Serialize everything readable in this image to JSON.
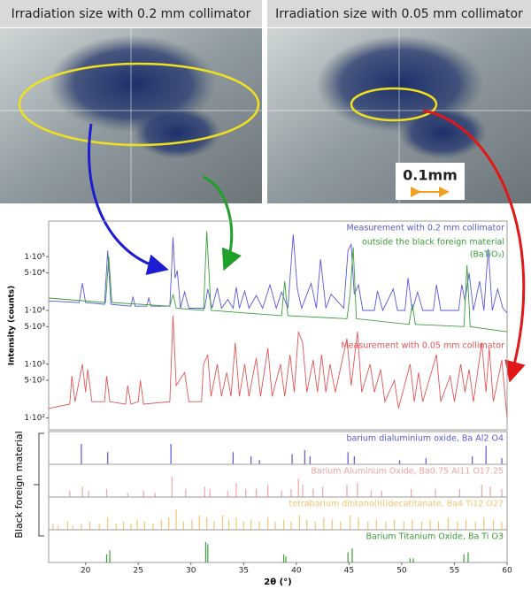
{
  "photos": [
    {
      "title": "Irradiation size with 0.2 mm collimator"
    },
    {
      "title": "Irradiation size with 0.05 mm collimator"
    }
  ],
  "scale_bar": "0.1mm",
  "chart_data": [
    {
      "type": "line",
      "log_y": true,
      "ylabel": "Intensity (counts)",
      "xlim": [
        16.5,
        60
      ],
      "ylim": [
        60,
        460000
      ],
      "yticks": [
        {
          "value": 100000,
          "label": "1·10⁵"
        },
        {
          "value": 50000,
          "label": "5·10⁴"
        },
        {
          "value": 10000,
          "label": "1·10⁴"
        },
        {
          "value": 5000,
          "label": "5·10³"
        },
        {
          "value": 1000,
          "label": "1·10³"
        },
        {
          "value": 500,
          "label": "5·10²"
        },
        {
          "value": 100,
          "label": "1·10²"
        }
      ],
      "series": [
        {
          "name": "Measurement with 0.2 mm collimator",
          "color": "#5858d8",
          "x": [
            16.5,
            19.4,
            19.7,
            20.0,
            21.8,
            22.1,
            22.4,
            24.3,
            24.5,
            24.7,
            25.8,
            26.0,
            26.2,
            28.0,
            28.3,
            28.5,
            28.7,
            29.0,
            29.4,
            29.8,
            31.3,
            31.6,
            32.0,
            32.5,
            32.9,
            33.5,
            34.0,
            34.3,
            34.6,
            35.1,
            35.5,
            36.2,
            36.8,
            37.5,
            38.1,
            38.6,
            39.2,
            39.7,
            40.1,
            40.5,
            41.4,
            41.9,
            42.3,
            42.8,
            43.3,
            44.5,
            44.9,
            45.2,
            45.5,
            45.9,
            46.3,
            47.4,
            47.7,
            48.2,
            49.2,
            49.6,
            50.3,
            50.6,
            51.0,
            51.5,
            52.0,
            53.0,
            53.3,
            53.7,
            55.4,
            55.7,
            56.0,
            56.4,
            56.8,
            57.4,
            57.8,
            58.2,
            58.6,
            59.1,
            59.6,
            60
          ],
          "values": [
            15000,
            14000,
            32000,
            14000,
            13000,
            130000,
            13000,
            12000,
            18000,
            12000,
            12000,
            17000,
            12000,
            12000,
            230000,
            40000,
            55000,
            11000,
            22000,
            11000,
            11000,
            25000,
            11000,
            26000,
            11000,
            16000,
            11000,
            27000,
            11000,
            23000,
            11000,
            19000,
            11000,
            30000,
            11000,
            22000,
            11000,
            260000,
            25000,
            11000,
            32000,
            11000,
            90000,
            11000,
            20000,
            11000,
            130000,
            170000,
            20000,
            30000,
            10000,
            10000,
            23000,
            10000,
            25000,
            10000,
            10000,
            40000,
            10000,
            22000,
            10000,
            10000,
            30000,
            10000,
            10000,
            30000,
            15000,
            50000,
            10000,
            35000,
            10000,
            140000,
            10000,
            25000,
            11000,
            9000
          ]
        },
        {
          "name": "outside the black foreign material",
          "formula": "(BaTiO₃)",
          "color": "#3a9e3a",
          "x": [
            16.5,
            21.9,
            22.2,
            22.5,
            28.0,
            28.3,
            28.6,
            31.2,
            31.5,
            31.9,
            38.6,
            38.9,
            39.2,
            44.8,
            45.1,
            45.4,
            45.7,
            50.7,
            51.0,
            51.3,
            55.9,
            56.2,
            56.5,
            60
          ],
          "values": [
            17000,
            14000,
            100000,
            14000,
            12000,
            20000,
            11000,
            10000,
            300000,
            10000,
            8000,
            35000,
            8000,
            7000,
            20000,
            150000,
            7000,
            5500,
            13000,
            5500,
            5000,
            70000,
            5000,
            4000
          ]
        },
        {
          "name": "Measurement with 0.05 mm collimator",
          "color": "#e05555",
          "x": [
            16.5,
            18.5,
            18.7,
            19.0,
            19.7,
            20.0,
            20.2,
            20.6,
            21.8,
            22.0,
            22.3,
            23.8,
            24.0,
            24.3,
            25.0,
            25.2,
            25.5,
            28.0,
            28.3,
            28.6,
            29.4,
            29.8,
            31.0,
            31.2,
            31.6,
            31.9,
            32.5,
            32.9,
            33.4,
            33.8,
            34.2,
            34.6,
            35.1,
            35.5,
            36.2,
            36.6,
            37.3,
            37.7,
            38.5,
            38.9,
            39.4,
            39.8,
            40.2,
            40.6,
            41.0,
            41.6,
            42.0,
            42.4,
            42.8,
            43.2,
            43.7,
            44.8,
            45.2,
            45.8,
            46.2,
            47.0,
            47.4,
            48.0,
            48.4,
            49.3,
            49.7,
            50.8,
            51.2,
            51.6,
            52.0,
            53.3,
            53.7,
            54.6,
            55.0,
            55.6,
            56.0,
            56.4,
            56.8,
            57.6,
            58.0,
            58.3,
            58.7,
            59.5,
            60
          ],
          "values": [
            150,
            180,
            600,
            200,
            1000,
            300,
            800,
            200,
            200,
            600,
            200,
            180,
            400,
            180,
            200,
            500,
            180,
            200,
            8000,
            400,
            700,
            200,
            200,
            1000,
            1500,
            250,
            1000,
            250,
            700,
            250,
            2500,
            250,
            1000,
            250,
            1300,
            250,
            2000,
            250,
            1000,
            250,
            1500,
            300,
            4000,
            2500,
            300,
            1200,
            300,
            1500,
            300,
            1000,
            300,
            3000,
            400,
            4000,
            300,
            1000,
            300,
            800,
            200,
            500,
            150,
            1000,
            200,
            700,
            200,
            1500,
            200,
            600,
            200,
            1000,
            300,
            800,
            200,
            2500,
            300,
            2000,
            200,
            1200,
            100
          ]
        }
      ]
    },
    {
      "type": "stick",
      "xlabel": "2θ (°)",
      "group_label": "Black foreign material",
      "xlim": [
        16.5,
        60
      ],
      "ylim": [
        0,
        100
      ],
      "xticks": [
        20,
        25,
        30,
        35,
        40,
        45,
        50,
        55,
        60
      ],
      "series": [
        {
          "name": "barium dialuminium oxide, Ba Al2 O4",
          "color": "#5858d8",
          "x": [
            19.6,
            22.1,
            28.1,
            34.0,
            35.7,
            36.5,
            39.6,
            40.8,
            41.3,
            44.9,
            45.5,
            49.8,
            52.3,
            56.7,
            58.0,
            59.5
          ],
          "values": [
            100,
            60,
            100,
            60,
            40,
            20,
            50,
            70,
            40,
            60,
            40,
            20,
            30,
            40,
            90,
            30
          ]
        },
        {
          "name": "Barium Aluminum Oxide, Ba0.75 Al11 O17.25",
          "color": "#f2a3a3",
          "x": [
            18.5,
            19.7,
            20.3,
            22.0,
            24.0,
            25.5,
            26.6,
            28.2,
            29.5,
            31.3,
            31.8,
            33.5,
            34.3,
            35.2,
            36.2,
            37.3,
            38.6,
            39.5,
            40.2,
            40.6,
            41.6,
            42.5,
            44.8,
            45.8,
            47.1,
            48.1,
            50.9,
            53.2,
            55.5,
            57.6,
            58.4,
            59.5
          ],
          "values": [
            30,
            50,
            30,
            40,
            20,
            30,
            20,
            100,
            40,
            50,
            40,
            30,
            70,
            40,
            40,
            60,
            30,
            40,
            90,
            60,
            40,
            50,
            60,
            70,
            30,
            30,
            40,
            40,
            40,
            60,
            50,
            40
          ]
        },
        {
          "name": "tetrabarium dititano(III)decatitanate, Ba4 Ti12 O27",
          "color": "#f5c46e",
          "x": [
            16.9,
            17.4,
            18.3,
            18.8,
            19.6,
            20.4,
            21.3,
            22.1,
            22.9,
            23.6,
            24.3,
            24.9,
            25.6,
            26.4,
            27.2,
            27.9,
            28.6,
            29.3,
            30.1,
            30.8,
            31.5,
            32.2,
            33.0,
            33.6,
            34.3,
            35.0,
            35.7,
            36.5,
            37.3,
            38.0,
            38.8,
            39.5,
            40.3,
            41.0,
            41.8,
            42.6,
            43.4,
            44.2,
            45.1,
            45.9,
            46.8,
            47.6,
            48.5,
            49.3,
            50.2,
            51.0,
            51.9,
            52.7,
            53.5,
            54.4,
            55.3,
            56.1,
            57.0,
            57.8,
            58.7,
            59.5
          ],
          "values": [
            30,
            20,
            40,
            20,
            30,
            40,
            30,
            60,
            30,
            40,
            30,
            50,
            40,
            30,
            50,
            60,
            100,
            40,
            50,
            70,
            60,
            40,
            70,
            50,
            60,
            40,
            50,
            40,
            60,
            40,
            50,
            40,
            70,
            50,
            40,
            60,
            50,
            40,
            70,
            60,
            40,
            50,
            40,
            50,
            40,
            50,
            40,
            50,
            40,
            60,
            40,
            50,
            40,
            60,
            50,
            40
          ]
        },
        {
          "name": "Barium Titanium Oxide, Ba Ti O3",
          "color": "#3a9e3a",
          "x": [
            22.0,
            22.3,
            31.4,
            31.6,
            38.8,
            39.0,
            44.9,
            45.3,
            50.8,
            51.1,
            55.9,
            56.3
          ],
          "values": [
            40,
            60,
            100,
            90,
            40,
            30,
            50,
            70,
            20,
            20,
            40,
            50
          ]
        }
      ]
    }
  ]
}
